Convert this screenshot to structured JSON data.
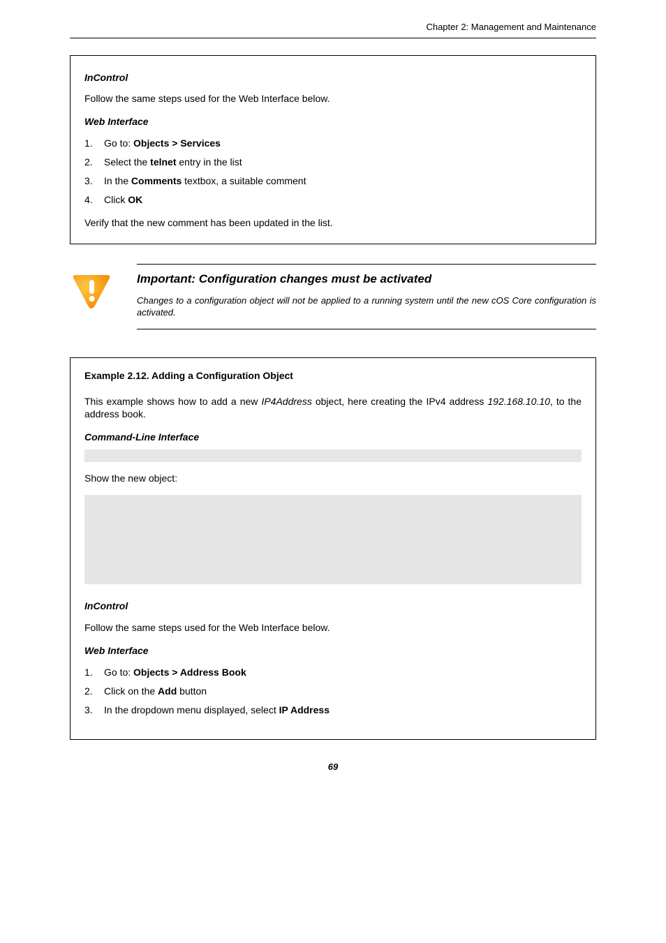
{
  "header": {
    "chapter": "Chapter 2: Management and Maintenance"
  },
  "box1": {
    "incontrol_title": "InControl",
    "incontrol_text": "Follow the same steps used for the Web Interface below.",
    "web_title": "Web Interface",
    "steps": [
      {
        "n": "1.",
        "pre": "Go to: ",
        "bold": "Objects > Services",
        "post": ""
      },
      {
        "n": "2.",
        "pre": "Select the ",
        "bold": "telnet",
        "post": " entry in the list"
      },
      {
        "n": "3.",
        "pre": "In the ",
        "bold": "Comments",
        "post": " textbox, a suitable comment"
      },
      {
        "n": "4.",
        "pre": "Click ",
        "bold": "OK",
        "post": ""
      }
    ],
    "verify": "Verify that the new comment has been updated in the list."
  },
  "important": {
    "title": "Important: Configuration changes must be activated",
    "text": "Changes to a configuration object will not be applied to a running system until the new cOS Core configuration is activated.",
    "icon_outer_color": "#f7a319",
    "icon_inner_color": "#ffffff"
  },
  "box2": {
    "title": "Example 2.12. Adding a Configuration Object",
    "intro_pre": "This example shows how to add a new ",
    "intro_term": "IP4Address",
    "intro_mid": " object, here creating the IPv4 address ",
    "intro_ip": "192.168.10.10",
    "intro_post": ", to the address book.",
    "cli_title": "Command-Line Interface",
    "show_label": "Show the new object:",
    "incontrol_title": "InControl",
    "incontrol_text": "Follow the same steps used for the Web Interface below.",
    "web_title": "Web Interface",
    "steps": [
      {
        "n": "1.",
        "pre": "Go to: ",
        "bold": "Objects > Address Book",
        "post": ""
      },
      {
        "n": "2.",
        "pre": "Click on the ",
        "bold": "Add",
        "post": " button"
      },
      {
        "n": "3.",
        "pre": "In the dropdown menu displayed, select ",
        "bold": "IP Address",
        "post": ""
      }
    ]
  },
  "footer": {
    "page": "69"
  },
  "colors": {
    "code_bg": "#e6e6e6"
  }
}
